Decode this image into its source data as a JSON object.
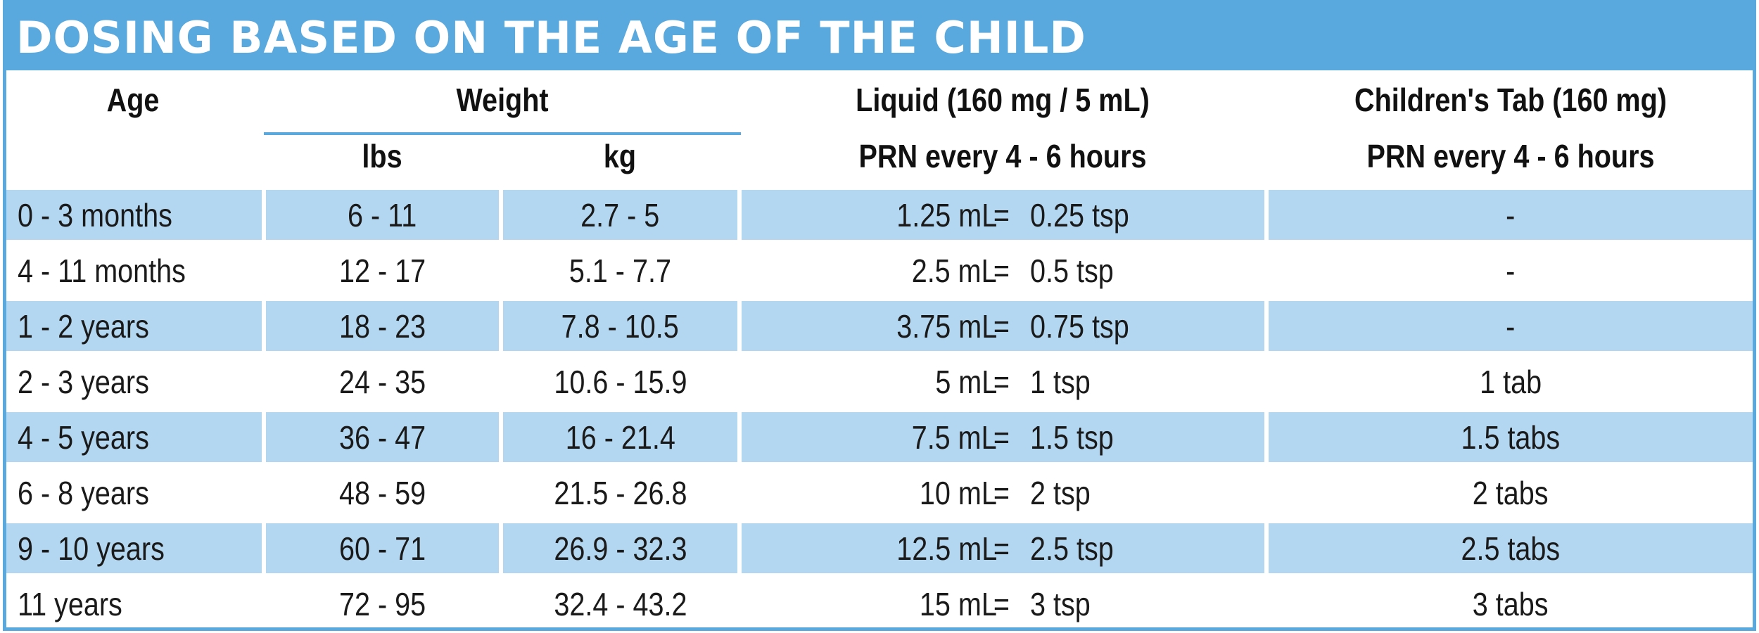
{
  "title": "DOSING BASED ON THE AGE OF THE CHILD",
  "colors": {
    "accent": "#5aa9de",
    "row_shade": "#b3d7f0",
    "text": "#1a1a1a"
  },
  "headers": {
    "age": "Age",
    "weight": "Weight",
    "lbs": "lbs",
    "kg": "kg",
    "liquid_line1": "Liquid (160 mg / 5 mL)",
    "liquid_line2": "PRN every 4 - 6 hours",
    "tab_line1": "Children's Tab (160 mg)",
    "tab_line2": "PRN every 4 - 6 hours"
  },
  "rows": [
    {
      "age": "0 - 3 months",
      "lbs": "6 - 11",
      "kg": "2.7 - 5",
      "ml": "1.25 mL",
      "eq": "=",
      "tsp": "0.25 tsp",
      "tab": "-"
    },
    {
      "age": "4 - 11 months",
      "lbs": "12 - 17",
      "kg": "5.1 - 7.7",
      "ml": "2.5 mL",
      "eq": "=",
      "tsp": "0.5 tsp",
      "tab": "-"
    },
    {
      "age": "1 - 2 years",
      "lbs": "18 - 23",
      "kg": "7.8 - 10.5",
      "ml": "3.75 mL",
      "eq": "=",
      "tsp": "0.75 tsp",
      "tab": "-"
    },
    {
      "age": "2 - 3 years",
      "lbs": "24 - 35",
      "kg": "10.6 - 15.9",
      "ml": "5 mL",
      "eq": "=",
      "tsp": "1 tsp",
      "tab": "1 tab"
    },
    {
      "age": "4 - 5 years",
      "lbs": "36 - 47",
      "kg": "16 - 21.4",
      "ml": "7.5 mL",
      "eq": "=",
      "tsp": "1.5 tsp",
      "tab": "1.5 tabs"
    },
    {
      "age": "6 - 8 years",
      "lbs": "48 - 59",
      "kg": "21.5 - 26.8",
      "ml": "10 mL",
      "eq": "=",
      "tsp": "2 tsp",
      "tab": "2 tabs"
    },
    {
      "age": "9 - 10 years",
      "lbs": "60 - 71",
      "kg": "26.9 - 32.3",
      "ml": "12.5 mL",
      "eq": "=",
      "tsp": "2.5 tsp",
      "tab": "2.5 tabs"
    },
    {
      "age": "11 years",
      "lbs": "72 - 95",
      "kg": "32.4 - 43.2",
      "ml": "15 mL",
      "eq": "=",
      "tsp": "3 tsp",
      "tab": "3 tabs"
    }
  ]
}
